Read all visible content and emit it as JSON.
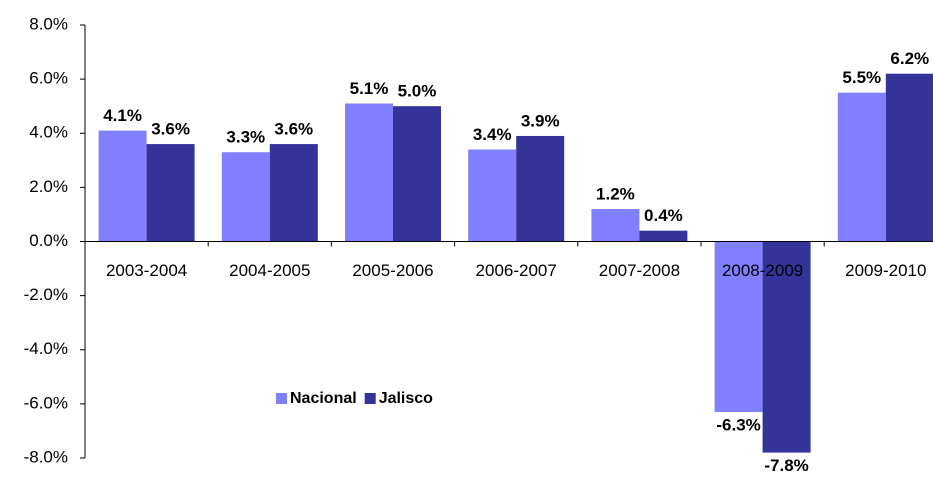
{
  "chart_data": {
    "type": "bar",
    "categories": [
      "2003-2004",
      "2004-2005",
      "2005-2006",
      "2006-2007",
      "2007-2008",
      "2008-2009",
      "2009-2010"
    ],
    "series": [
      {
        "name": "Nacional",
        "color": "#8080ff",
        "values": [
          4.1,
          3.3,
          5.1,
          3.4,
          1.2,
          -6.3,
          5.5
        ],
        "value_labels": [
          "4.1%",
          "3.3%",
          "5.1%",
          "3.4%",
          "1.2%",
          "-6.3%",
          "5.5%"
        ]
      },
      {
        "name": "Jalisco",
        "color": "#333399",
        "values": [
          3.6,
          3.6,
          5.0,
          3.9,
          0.4,
          -7.8,
          6.2
        ],
        "value_labels": [
          "3.6%",
          "3.6%",
          "5.0%",
          "3.9%",
          "0.4%",
          "-7.8%",
          "6.2%"
        ]
      }
    ],
    "ylim": [
      -8,
      8
    ],
    "yticks": [
      {
        "value": -8,
        "label": "-8.0%"
      },
      {
        "value": -6,
        "label": "-6.0%"
      },
      {
        "value": -4,
        "label": "-4.0%"
      },
      {
        "value": -2,
        "label": "-2.0%"
      },
      {
        "value": 0,
        "label": "0.0%"
      },
      {
        "value": 2,
        "label": "2.0%"
      },
      {
        "value": 4,
        "label": "4.0%"
      },
      {
        "value": 6,
        "label": "6.0%"
      },
      {
        "value": 8,
        "label": "8.0%"
      }
    ],
    "grid": false
  }
}
